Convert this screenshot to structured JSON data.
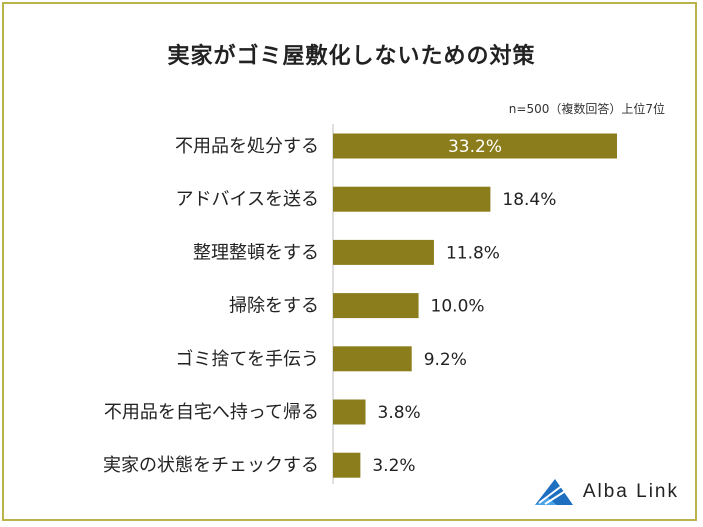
{
  "chart_data": {
    "type": "bar",
    "orientation": "horizontal",
    "title": "実家がゴミ屋敷化しないための対策",
    "note": "n=500（複数回答）上位7位",
    "categories": [
      "不用品を処分する",
      "アドバイスを送る",
      "整理整頓をする",
      "掃除をする",
      "ゴミ捨てを手伝う",
      "不用品を自宅へ持って帰る",
      "実家の状態をチェックする"
    ],
    "values": [
      33.2,
      18.4,
      11.8,
      10.0,
      9.2,
      3.8,
      3.2
    ],
    "value_labels": [
      "33.2%",
      "18.4%",
      "11.8%",
      "10.0%",
      "9.2%",
      "3.8%",
      "3.2%"
    ],
    "bar_color": "#8b7d1c",
    "frame_color": "#b9b44a",
    "grid": false,
    "legend": "none"
  },
  "brand": {
    "logo_icon": "alba-link-logo-icon",
    "logo_text": "Alba Link"
  }
}
